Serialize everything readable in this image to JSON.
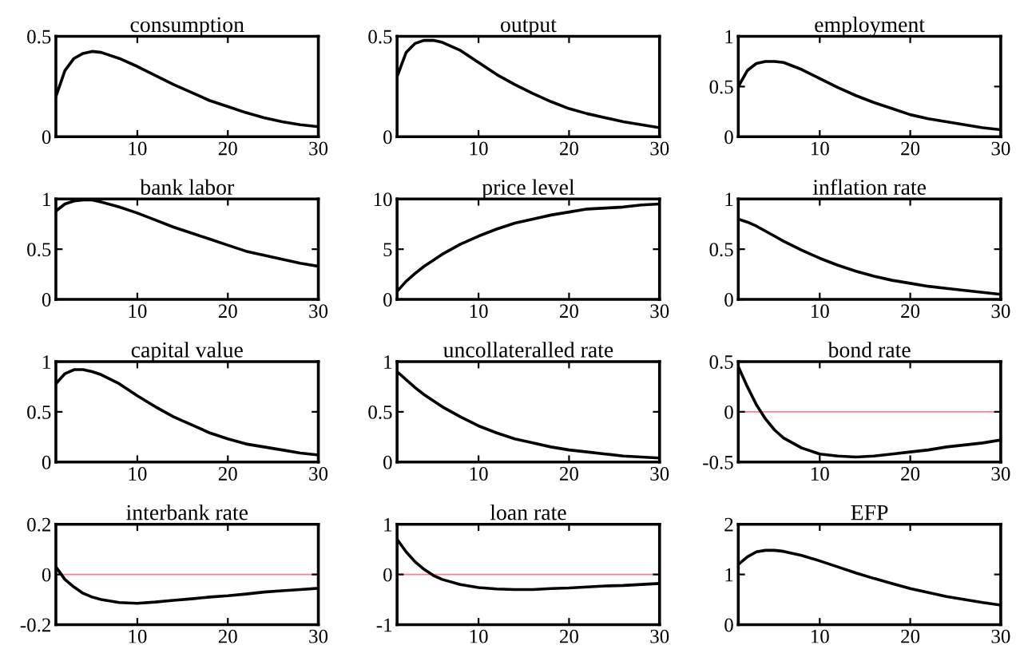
{
  "chart_data": [
    {
      "type": "line",
      "title": "consumption",
      "x": [
        1,
        2,
        3,
        4,
        5,
        6,
        8,
        10,
        12,
        14,
        16,
        18,
        20,
        22,
        24,
        26,
        28,
        30
      ],
      "series": [
        {
          "color": "#000000",
          "values": [
            0.2,
            0.33,
            0.39,
            0.415,
            0.425,
            0.42,
            0.39,
            0.35,
            0.305,
            0.26,
            0.22,
            0.18,
            0.15,
            0.12,
            0.095,
            0.075,
            0.06,
            0.05
          ]
        }
      ],
      "xlim": [
        1,
        30
      ],
      "xticks": [
        10,
        20,
        30
      ],
      "ylim": [
        0,
        0.5
      ],
      "yticks": [
        0,
        0.5
      ],
      "grid": false
    },
    {
      "type": "line",
      "title": "output",
      "x": [
        1,
        2,
        3,
        4,
        5,
        6,
        8,
        10,
        12,
        14,
        16,
        18,
        20,
        22,
        24,
        26,
        28,
        30
      ],
      "series": [
        {
          "color": "#000000",
          "values": [
            0.3,
            0.42,
            0.465,
            0.48,
            0.48,
            0.47,
            0.43,
            0.37,
            0.31,
            0.26,
            0.215,
            0.175,
            0.14,
            0.115,
            0.095,
            0.075,
            0.06,
            0.045
          ]
        }
      ],
      "xlim": [
        1,
        30
      ],
      "xticks": [
        10,
        20,
        30
      ],
      "ylim": [
        0,
        0.5
      ],
      "yticks": [
        0,
        0.5
      ],
      "grid": false
    },
    {
      "type": "line",
      "title": "employment",
      "x": [
        1,
        2,
        3,
        4,
        5,
        6,
        8,
        10,
        12,
        14,
        16,
        18,
        20,
        22,
        24,
        26,
        28,
        30
      ],
      "series": [
        {
          "color": "#000000",
          "values": [
            0.5,
            0.66,
            0.73,
            0.75,
            0.75,
            0.74,
            0.67,
            0.58,
            0.49,
            0.41,
            0.34,
            0.28,
            0.22,
            0.18,
            0.15,
            0.12,
            0.09,
            0.07
          ]
        }
      ],
      "xlim": [
        1,
        30
      ],
      "xticks": [
        10,
        20,
        30
      ],
      "ylim": [
        0,
        1
      ],
      "yticks": [
        0,
        0.5,
        1
      ],
      "grid": false
    },
    {
      "type": "line",
      "title": "bank labor",
      "x": [
        1,
        2,
        3,
        4,
        5,
        6,
        8,
        10,
        12,
        14,
        16,
        18,
        20,
        22,
        24,
        26,
        28,
        30
      ],
      "series": [
        {
          "color": "#000000",
          "values": [
            0.88,
            0.95,
            0.98,
            0.99,
            0.99,
            0.97,
            0.92,
            0.86,
            0.79,
            0.72,
            0.66,
            0.6,
            0.54,
            0.48,
            0.44,
            0.4,
            0.36,
            0.33
          ]
        }
      ],
      "xlim": [
        1,
        30
      ],
      "xticks": [
        10,
        20,
        30
      ],
      "ylim": [
        0,
        1
      ],
      "yticks": [
        0,
        0.5,
        1
      ],
      "grid": false
    },
    {
      "type": "line",
      "title": "price level",
      "x": [
        1,
        2,
        3,
        4,
        5,
        6,
        8,
        10,
        12,
        14,
        16,
        18,
        20,
        22,
        24,
        26,
        28,
        30
      ],
      "series": [
        {
          "color": "#000000",
          "values": [
            0.8,
            1.8,
            2.6,
            3.3,
            3.9,
            4.5,
            5.5,
            6.3,
            7.0,
            7.6,
            8.0,
            8.4,
            8.7,
            9.0,
            9.1,
            9.2,
            9.4,
            9.5
          ]
        }
      ],
      "xlim": [
        1,
        30
      ],
      "xticks": [
        10,
        20,
        30
      ],
      "ylim": [
        0,
        10
      ],
      "yticks": [
        0,
        5,
        10
      ],
      "grid": false
    },
    {
      "type": "line",
      "title": "inflation rate",
      "x": [
        1,
        2,
        3,
        4,
        5,
        6,
        8,
        10,
        12,
        14,
        16,
        18,
        20,
        22,
        24,
        26,
        28,
        30
      ],
      "series": [
        {
          "color": "#000000",
          "values": [
            0.8,
            0.77,
            0.73,
            0.68,
            0.63,
            0.58,
            0.49,
            0.41,
            0.34,
            0.28,
            0.23,
            0.19,
            0.16,
            0.13,
            0.11,
            0.09,
            0.07,
            0.05
          ]
        }
      ],
      "xlim": [
        1,
        30
      ],
      "xticks": [
        10,
        20,
        30
      ],
      "ylim": [
        0,
        1
      ],
      "yticks": [
        0,
        0.5,
        1
      ],
      "grid": false
    },
    {
      "type": "line",
      "title": "capital value",
      "x": [
        1,
        2,
        3,
        4,
        5,
        6,
        8,
        10,
        12,
        14,
        16,
        18,
        20,
        22,
        24,
        26,
        28,
        30
      ],
      "series": [
        {
          "color": "#000000",
          "values": [
            0.78,
            0.88,
            0.92,
            0.92,
            0.9,
            0.87,
            0.78,
            0.66,
            0.55,
            0.45,
            0.37,
            0.29,
            0.23,
            0.18,
            0.15,
            0.12,
            0.09,
            0.07
          ]
        }
      ],
      "xlim": [
        1,
        30
      ],
      "xticks": [
        10,
        20,
        30
      ],
      "ylim": [
        0,
        1
      ],
      "yticks": [
        0,
        0.5,
        1
      ],
      "grid": false
    },
    {
      "type": "line",
      "title": "uncollateralled rate",
      "x": [
        1,
        2,
        3,
        4,
        5,
        6,
        8,
        10,
        12,
        14,
        16,
        18,
        20,
        22,
        24,
        26,
        28,
        30
      ],
      "series": [
        {
          "color": "#000000",
          "values": [
            0.9,
            0.82,
            0.74,
            0.67,
            0.61,
            0.55,
            0.45,
            0.36,
            0.29,
            0.23,
            0.19,
            0.15,
            0.12,
            0.1,
            0.08,
            0.06,
            0.05,
            0.04
          ]
        }
      ],
      "xlim": [
        1,
        30
      ],
      "xticks": [
        10,
        20,
        30
      ],
      "ylim": [
        0,
        1
      ],
      "yticks": [
        0,
        0.5,
        1
      ],
      "grid": false
    },
    {
      "type": "line",
      "title": "bond rate",
      "x": [
        1,
        2,
        3,
        4,
        5,
        6,
        8,
        10,
        12,
        14,
        16,
        18,
        20,
        22,
        24,
        26,
        28,
        30
      ],
      "series": [
        {
          "color": "#000000",
          "values": [
            0.45,
            0.25,
            0.07,
            -0.07,
            -0.18,
            -0.26,
            -0.36,
            -0.42,
            -0.44,
            -0.45,
            -0.44,
            -0.42,
            -0.4,
            -0.38,
            -0.35,
            -0.33,
            -0.31,
            -0.28
          ]
        }
      ],
      "xlim": [
        1,
        30
      ],
      "xticks": [
        10,
        20,
        30
      ],
      "ylim": [
        -0.5,
        0.5
      ],
      "yticks": [
        -0.5,
        0,
        0.5
      ],
      "ref_lines": [
        {
          "axis": "y",
          "value": 0,
          "color": "#ff8080"
        }
      ],
      "grid": false
    },
    {
      "type": "line",
      "title": "interbank rate",
      "x": [
        1,
        2,
        3,
        4,
        5,
        6,
        8,
        10,
        12,
        14,
        16,
        18,
        20,
        22,
        24,
        26,
        28,
        30
      ],
      "series": [
        {
          "color": "#000000",
          "values": [
            0.03,
            -0.02,
            -0.05,
            -0.075,
            -0.09,
            -0.1,
            -0.112,
            -0.115,
            -0.11,
            -0.103,
            -0.097,
            -0.09,
            -0.085,
            -0.078,
            -0.07,
            -0.065,
            -0.06,
            -0.055
          ]
        }
      ],
      "xlim": [
        1,
        30
      ],
      "xticks": [
        10,
        20,
        30
      ],
      "ylim": [
        -0.2,
        0.2
      ],
      "yticks": [
        -0.2,
        0,
        0.2
      ],
      "ref_lines": [
        {
          "axis": "y",
          "value": 0,
          "color": "#ff8080"
        }
      ],
      "grid": false
    },
    {
      "type": "line",
      "title": "loan rate",
      "x": [
        1,
        2,
        3,
        4,
        5,
        6,
        8,
        10,
        12,
        14,
        16,
        18,
        20,
        22,
        24,
        26,
        28,
        30
      ],
      "series": [
        {
          "color": "#000000",
          "values": [
            0.7,
            0.45,
            0.25,
            0.1,
            -0.02,
            -0.1,
            -0.2,
            -0.26,
            -0.29,
            -0.3,
            -0.3,
            -0.28,
            -0.27,
            -0.25,
            -0.23,
            -0.22,
            -0.2,
            -0.18
          ]
        }
      ],
      "xlim": [
        1,
        30
      ],
      "xticks": [
        10,
        20,
        30
      ],
      "ylim": [
        -1,
        1
      ],
      "yticks": [
        -1,
        0,
        1
      ],
      "ref_lines": [
        {
          "axis": "y",
          "value": 0,
          "color": "#ff8080"
        }
      ],
      "grid": false
    },
    {
      "type": "line",
      "title": "EFP",
      "x": [
        1,
        2,
        3,
        4,
        5,
        6,
        8,
        10,
        12,
        14,
        16,
        18,
        20,
        22,
        24,
        26,
        28,
        30
      ],
      "series": [
        {
          "color": "#000000",
          "values": [
            1.2,
            1.35,
            1.45,
            1.48,
            1.48,
            1.46,
            1.38,
            1.27,
            1.15,
            1.03,
            0.92,
            0.82,
            0.72,
            0.64,
            0.56,
            0.5,
            0.44,
            0.39
          ]
        }
      ],
      "xlim": [
        1,
        30
      ],
      "xticks": [
        10,
        20,
        30
      ],
      "ylim": [
        0,
        2
      ],
      "yticks": [
        0,
        1,
        2
      ],
      "grid": false
    }
  ]
}
